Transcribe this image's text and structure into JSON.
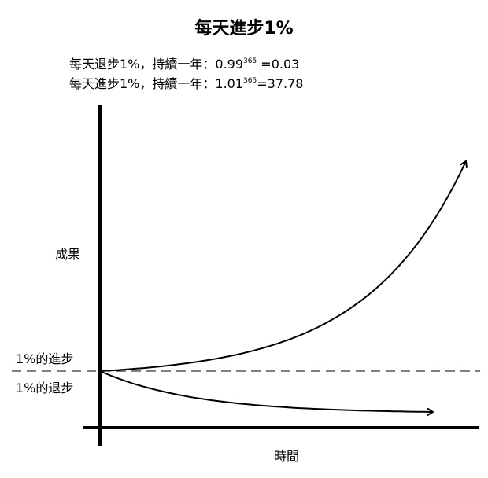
{
  "chart_data": {
    "type": "line",
    "title": "每天進步1%",
    "annotations": {
      "decline": {
        "prefix": "每天退步1%，持續一年：",
        "base": "0.99",
        "exp": "365",
        "result": " =0.03"
      },
      "growth": {
        "prefix": "每天進步1%，持續一年：",
        "base": "1.01",
        "exp": "365",
        "result": "=37.78"
      }
    },
    "ylabel": "成果",
    "xlabel": "時間",
    "baseline_labels": {
      "above": "1%的進步",
      "below": "1%的退步"
    },
    "x": [
      0,
      73,
      146,
      219,
      292,
      365
    ],
    "series": [
      {
        "name": "1%的進步",
        "values": [
          1.0,
          2.07,
          4.28,
          8.86,
          18.3,
          37.78
        ]
      },
      {
        "name": "1%的退步",
        "values": [
          1.0,
          0.48,
          0.23,
          0.11,
          0.05,
          0.03
        ]
      }
    ],
    "axes_color": "#000000",
    "line_color": "#000000",
    "baseline_style": "dashed"
  }
}
